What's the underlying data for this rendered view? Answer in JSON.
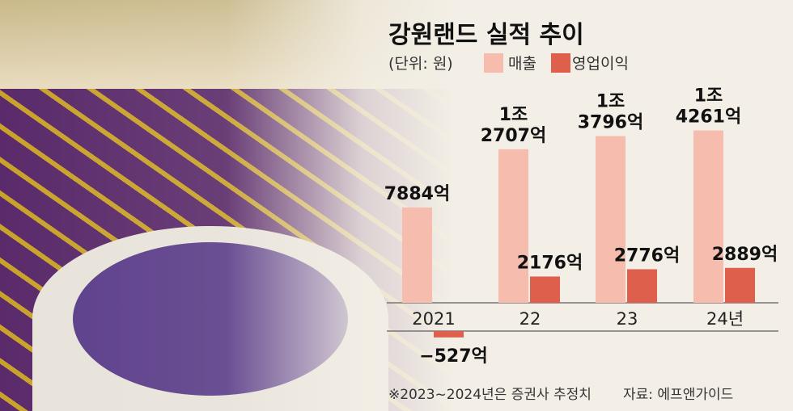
{
  "chart_data": {
    "type": "bar",
    "title": "강원랜드 실적 추이",
    "unit_label": "(단위: 원)",
    "categories": [
      "2021",
      "22",
      "23",
      "24년"
    ],
    "series": [
      {
        "name": "매출",
        "color": "#f6bcae",
        "values": [
          7884,
          12707,
          13796,
          14261
        ],
        "labels": [
          [
            "7884억"
          ],
          [
            "1조",
            "2707억"
          ],
          [
            "1조",
            "3796억"
          ],
          [
            "1조",
            "4261억"
          ]
        ]
      },
      {
        "name": "영업이익",
        "color": "#df5f4d",
        "values": [
          -527,
          2176,
          2776,
          2889
        ],
        "labels": [
          [
            "−527억"
          ],
          [
            "2176억"
          ],
          [
            "2776억"
          ],
          [
            "2889억"
          ]
        ]
      }
    ],
    "value_unit": "억원",
    "note": "※2023~2024년은 증권사 추정치",
    "source": "자료: 에프앤가이드",
    "legend_placement": "top-left",
    "grid": false
  }
}
